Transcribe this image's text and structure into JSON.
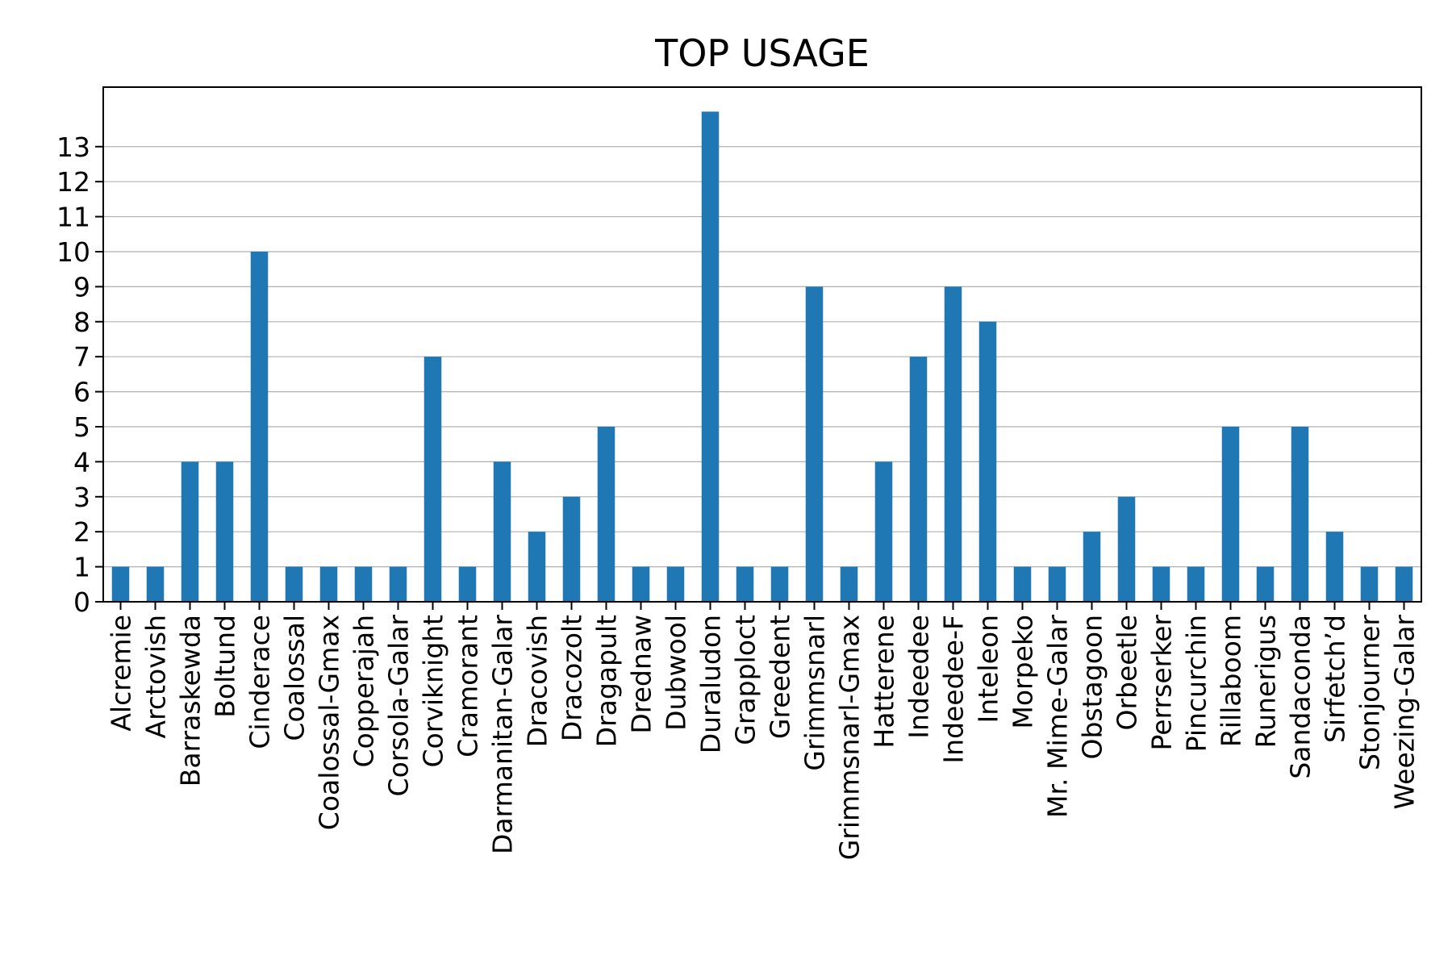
{
  "chart_data": {
    "type": "bar",
    "title": "TOP USAGE",
    "xlabel": "",
    "ylabel": "",
    "categories": [
      "Alcremie",
      "Arctovish",
      "Barraskewda",
      "Boltund",
      "Cinderace",
      "Coalossal",
      "Coalossal-Gmax",
      "Copperajah",
      "Corsola-Galar",
      "Corviknight",
      "Cramorant",
      "Darmanitan-Galar",
      "Dracovish",
      "Dracozolt",
      "Dragapult",
      "Drednaw",
      "Dubwool",
      "Duraludon",
      "Grapploct",
      "Greedent",
      "Grimmsnarl",
      "Grimmsnarl-Gmax",
      "Hatterene",
      "Indeedee",
      "Indeedee-F",
      "Inteleon",
      "Morpeko",
      "Mr. Mime-Galar",
      "Obstagoon",
      "Orbeetle",
      "Perrserker",
      "Pincurchin",
      "Rillaboom",
      "Runerigus",
      "Sandaconda",
      "Sirfetch’d",
      "Stonjourner",
      "Weezing-Galar"
    ],
    "values": [
      1,
      1,
      4,
      4,
      10,
      1,
      1,
      1,
      1,
      7,
      1,
      4,
      2,
      3,
      5,
      1,
      1,
      14,
      1,
      1,
      9,
      1,
      4,
      7,
      9,
      8,
      1,
      1,
      2,
      3,
      1,
      1,
      5,
      1,
      5,
      2,
      1,
      1
    ],
    "ylim": [
      0,
      14.7
    ],
    "yticks": [
      0,
      1,
      2,
      3,
      4,
      5,
      6,
      7,
      8,
      9,
      10,
      11,
      12,
      13
    ],
    "grid": "horizontal",
    "legend": "none",
    "bar_color": "#1f77b4"
  }
}
